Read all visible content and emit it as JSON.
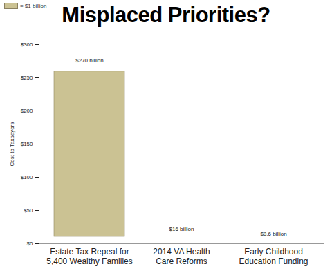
{
  "chart_data": {
    "type": "bar",
    "title": "Misplaced Priorities?",
    "annotations": [
      "= $1 billion"
    ],
    "y_label": "Cost to Taxpayers",
    "categories": [
      "Estate Tax Repeal for 5,400 Wealthy Families",
      "2014 VA Health Care Reforms",
      "Early Childhood Education Funding"
    ],
    "values": [
      270,
      16,
      8.6
    ],
    "value_labels": [
      "$270 billion",
      "$16 billion",
      "$8.6 billion"
    ],
    "data_labels": true,
    "color": "#cbc293",
    "ylim": [
      0,
      300
    ],
    "yticks": [
      {
        "value": 0,
        "label": "$0"
      },
      {
        "value": 50,
        "label": "$50"
      },
      {
        "value": 100,
        "label": "$100"
      },
      {
        "value": 150,
        "label": "$150"
      },
      {
        "value": 200,
        "label": "$200"
      },
      {
        "value": 250,
        "label": "$250"
      },
      {
        "value": 300,
        "label": "$300"
      }
    ],
    "grid": false
  }
}
